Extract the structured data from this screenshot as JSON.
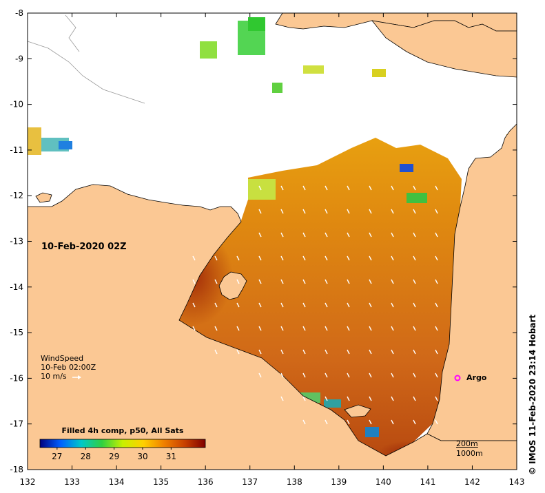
{
  "map": {
    "date_label": "10-Feb-2020 02Z",
    "x_ticks": [
      "132",
      "133",
      "134",
      "135",
      "136",
      "137",
      "138",
      "139",
      "140",
      "141",
      "142",
      "143"
    ],
    "y_ticks": [
      "-8",
      "-9",
      "-10",
      "-11",
      "-12",
      "-13",
      "-14",
      "-15",
      "-16",
      "-17",
      "-18"
    ],
    "wind_legend": {
      "title": "WindSpeed",
      "time": "10-Feb 02:00Z",
      "scale": "10 m/s"
    },
    "colorbar": {
      "title": "Filled 4h comp, p50, All Sats",
      "ticks": [
        "27",
        "28",
        "29",
        "30",
        "31"
      ],
      "range": [
        26.4,
        32.2
      ],
      "colormap": [
        "#00007f",
        "#0060ff",
        "#00c8c8",
        "#30d040",
        "#c8f000",
        "#ffd000",
        "#f08000",
        "#c84000",
        "#800000"
      ]
    },
    "argo": {
      "label": "Argo",
      "marker_color": "#ff00ff"
    },
    "bathymetry_legend": [
      "200m",
      "1000m"
    ],
    "credit": "© IMOS 11-Feb-2020 23:14 Hobart",
    "colors": {
      "land": "#fbc894",
      "no_data": "#ffffff",
      "sst_warm": "#d06010",
      "sst_hot": "#9a2a08",
      "sst_mid": "#e89a10",
      "wind_arrow": "#ffffff"
    }
  }
}
